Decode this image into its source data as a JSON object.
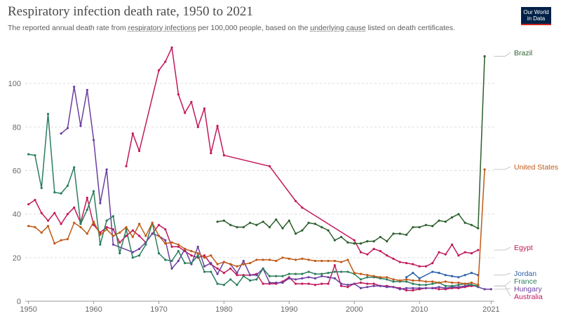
{
  "title": "Respiratory infection death rate, 1950 to 2021",
  "subtitle": {
    "pre": "The reported annual death rate from ",
    "link1": "respiratory infections",
    "mid": " per 100,000 people, based on the ",
    "link2": "underlying cause",
    "post": " listed on death certificates."
  },
  "logo": {
    "line1": "Our World",
    "line2": "in Data",
    "bg": "#002147",
    "accent": "#ce261e"
  },
  "chart_data": {
    "type": "line",
    "title": "Respiratory infection death rate, 1950 to 2021",
    "xlim": [
      1949.5,
      2021.5
    ],
    "ylim": [
      0,
      120
    ],
    "x_ticks": [
      1950,
      1960,
      1970,
      1980,
      1990,
      2000,
      2010,
      2021
    ],
    "y_ticks": [
      0,
      20,
      40,
      60,
      80,
      100
    ],
    "grid": "horizontal dashed",
    "legend": "right end labels",
    "series": [
      {
        "name": "Brazil",
        "color": "#2c5f2d",
        "x": [
          1979,
          1980,
          1981,
          1982,
          1983,
          1984,
          1985,
          1986,
          1987,
          1988,
          1989,
          1990,
          1991,
          1992,
          1993,
          1994,
          1995,
          1996,
          1997,
          1998,
          1999,
          2000,
          2001,
          2002,
          2003,
          2004,
          2005,
          2006,
          2007,
          2008,
          2009,
          2010,
          2011,
          2012,
          2013,
          2014,
          2015,
          2016,
          2017,
          2018,
          2019,
          2020
        ],
        "y": [
          36.5,
          37,
          35,
          34,
          34,
          36,
          35,
          36.5,
          34,
          37.5,
          33.5,
          37,
          31,
          32.5,
          36,
          35.5,
          34,
          32.5,
          28,
          29.5,
          27,
          26.5,
          26.5,
          27.5,
          27.5,
          29.5,
          27.5,
          31,
          31,
          30.5,
          34,
          34,
          35,
          34.5,
          37,
          36.5,
          38.5,
          40,
          36,
          35,
          33.5,
          112.5
        ]
      },
      {
        "name": "United States",
        "color": "#c05917",
        "x": [
          1950,
          1951,
          1952,
          1953,
          1954,
          1955,
          1956,
          1957,
          1958,
          1959,
          1960,
          1961,
          1962,
          1963,
          1964,
          1965,
          1966,
          1967,
          1968,
          1969,
          1970,
          1971,
          1972,
          1973,
          1974,
          1975,
          1976,
          1977,
          1978,
          1979,
          1980,
          1981,
          1982,
          1983,
          1984,
          1985,
          1986,
          1987,
          1988,
          1989,
          1990,
          1991,
          1992,
          1993,
          1994,
          1995,
          1996,
          1997,
          1998,
          1999,
          2000,
          2001,
          2002,
          2003,
          2004,
          2005,
          2006,
          2007,
          2008,
          2009,
          2010,
          2011,
          2012,
          2013,
          2014,
          2015,
          2016,
          2017,
          2018,
          2019,
          2020
        ],
        "y": [
          34.5,
          34,
          31.5,
          34.5,
          26.5,
          28,
          28.5,
          36,
          34,
          31,
          36.5,
          30.5,
          33,
          30,
          31.5,
          34,
          29.5,
          35.5,
          30,
          36,
          30,
          26.5,
          27,
          26,
          24,
          23,
          22,
          20,
          21,
          17,
          18,
          17,
          16,
          17,
          17.5,
          19,
          19,
          19,
          18.5,
          20,
          19.5,
          19,
          19.5,
          19,
          18.5,
          18.5,
          18.5,
          18.5,
          18,
          19,
          13,
          12.5,
          12,
          11.5,
          11,
          11,
          10,
          9.5,
          10,
          9.5,
          9.5,
          9,
          9,
          8.5,
          9,
          8.5,
          8.5,
          8,
          8.5,
          7.5,
          60.5
        ]
      },
      {
        "name": "Egypt",
        "color": "#c2185b",
        "x": [
          1965,
          1966,
          1967,
          1970,
          1971,
          1972,
          1973,
          1974,
          1975,
          1976,
          1977,
          1978,
          1979,
          1980,
          1987,
          1991,
          1992,
          2000,
          2001,
          2002,
          2003,
          2004,
          2005,
          2006,
          2007,
          2008,
          2009,
          2010,
          2011,
          2012,
          2013,
          2014,
          2015,
          2016,
          2017,
          2018,
          2019
        ],
        "y": [
          62,
          77,
          69,
          106,
          110,
          116.5,
          95,
          86.5,
          91.5,
          80,
          88.5,
          68,
          80.5,
          67,
          62,
          46,
          43,
          28,
          22.5,
          21.5,
          24,
          23,
          21,
          19.5,
          18,
          17.5,
          17,
          16,
          16,
          17.5,
          22.5,
          21.5,
          26,
          21,
          22.5,
          22,
          23.5
        ]
      },
      {
        "name": "Jordan",
        "color": "#2b61a8",
        "x": [
          2008,
          2009,
          2010,
          2012,
          2013,
          2014,
          2015,
          2016,
          2017,
          2018,
          2019
        ],
        "y": [
          11,
          13,
          10.5,
          13.5,
          13,
          12,
          11.5,
          11,
          12,
          13,
          12
        ]
      },
      {
        "name": "France",
        "color": "#2a7e5c",
        "x": [
          1950,
          1951,
          1952,
          1953,
          1954,
          1955,
          1956,
          1957,
          1958,
          1959,
          1960,
          1961,
          1962,
          1963,
          1964,
          1965,
          1966,
          1967,
          1968,
          1969,
          1970,
          1971,
          1972,
          1973,
          1974,
          1975,
          1976,
          1977,
          1978,
          1979,
          1980,
          1981,
          1982,
          1983,
          1984,
          1985,
          1986,
          1987,
          1988,
          1989,
          1990,
          1991,
          1992,
          1993,
          1994,
          1995,
          1996,
          1997,
          1998,
          1999,
          2000,
          2001,
          2002,
          2003,
          2004,
          2005,
          2006,
          2007,
          2008,
          2009,
          2010,
          2011,
          2012,
          2013,
          2014,
          2015,
          2016,
          2017,
          2018,
          2019
        ],
        "y": [
          67.5,
          67,
          52,
          86,
          50,
          49.5,
          53,
          61.5,
          35.5,
          42,
          50.5,
          26,
          37,
          39,
          22,
          33,
          20,
          21,
          26,
          36,
          22,
          19,
          18.5,
          23,
          17.5,
          17.5,
          21,
          13.5,
          13.5,
          8,
          7.5,
          10,
          7.5,
          11.5,
          9.5,
          10,
          15,
          11.5,
          11.5,
          11.5,
          12.5,
          12.5,
          12.5,
          13.5,
          12.5,
          12.5,
          13,
          13.5,
          13.5,
          13.5,
          12.5,
          10,
          11,
          11,
          10.5,
          10,
          9,
          9,
          9,
          8,
          7.5,
          7.5,
          8,
          8.5,
          7,
          7,
          7.5,
          8,
          7.5,
          7
        ]
      },
      {
        "name": "Hungary",
        "color": "#6b3fa0",
        "x": [
          1955,
          1956,
          1957,
          1958,
          1959,
          1960,
          1961,
          1962,
          1963,
          1966,
          1967,
          1968,
          1969,
          1970,
          1971,
          1972,
          1973,
          1974,
          1975,
          1976,
          1977,
          1978,
          1979,
          1980,
          1981,
          1982,
          1983,
          1984,
          1985,
          1986,
          1987,
          1988,
          1989,
          1990,
          1991,
          1992,
          1993,
          1994,
          1995,
          1996,
          1997,
          1998,
          1999,
          2000,
          2001,
          2002,
          2003,
          2004,
          2005,
          2006,
          2007,
          2008,
          2009,
          2010,
          2011,
          2012,
          2013,
          2014,
          2015,
          2016,
          2017,
          2018,
          2019,
          2020,
          2021
        ],
        "y": [
          77,
          79.5,
          98.5,
          80.5,
          97,
          74,
          45,
          60.5,
          26,
          22.5,
          24,
          27,
          31,
          30,
          28,
          15,
          18.5,
          24,
          17,
          25,
          16,
          17.5,
          12.5,
          18,
          17,
          13,
          18.5,
          12,
          12,
          15,
          8.5,
          8.5,
          8.5,
          10.5,
          10,
          10.5,
          11,
          10.5,
          11.5,
          11,
          10.5,
          8,
          7.5,
          8,
          6,
          6.5,
          7,
          7,
          6.5,
          6.5,
          5.5,
          6,
          6,
          6,
          6,
          6,
          6.5,
          6,
          6.5,
          6.5,
          7,
          7.5,
          6.5,
          5.5,
          5.5
        ]
      },
      {
        "name": "Australia",
        "color": "#c2185b",
        "x": [
          1950,
          1951,
          1952,
          1953,
          1954,
          1955,
          1956,
          1957,
          1958,
          1959,
          1960,
          1961,
          1962,
          1963,
          1964,
          1965,
          1966,
          1967,
          1968,
          1969,
          1970,
          1971,
          1972,
          1973,
          1974,
          1975,
          1976,
          1977,
          1978,
          1979,
          1980,
          1981,
          1982,
          1983,
          1984,
          1985,
          1986,
          1987,
          1988,
          1989,
          1990,
          1991,
          1992,
          1993,
          1994,
          1995,
          1996,
          1997,
          1998,
          1999,
          2000,
          2001,
          2002,
          2003,
          2004,
          2005,
          2006,
          2007,
          2008,
          2009,
          2010,
          2011,
          2012,
          2013,
          2014,
          2015,
          2016,
          2017,
          2018,
          2019
        ],
        "y": [
          44.5,
          46.5,
          40.5,
          37,
          40.5,
          35.5,
          40,
          43,
          36,
          47.5,
          35,
          31.5,
          34,
          33,
          27,
          30,
          32.5,
          30,
          27,
          31,
          35,
          33,
          25,
          25,
          23,
          21,
          20,
          21,
          17,
          15,
          13,
          15,
          12,
          12,
          12,
          12.5,
          8,
          8,
          8,
          9,
          11,
          8,
          8,
          8,
          7.5,
          8,
          8,
          16.5,
          7,
          6.5,
          8,
          8.5,
          8,
          8,
          7,
          7,
          6.5,
          6,
          5,
          5,
          5.5,
          6,
          6,
          5.5,
          5.5,
          6,
          6,
          6.5,
          7,
          7
        ]
      }
    ]
  }
}
